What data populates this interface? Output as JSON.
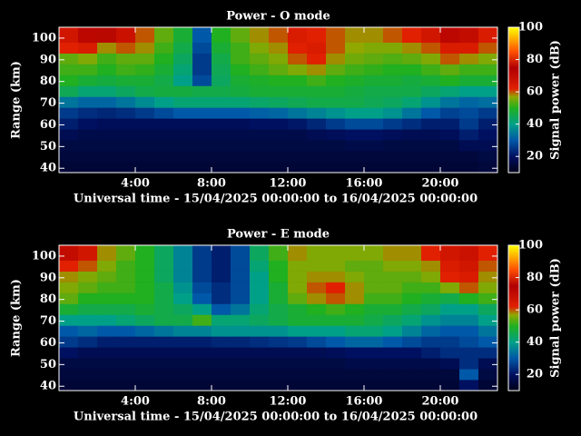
{
  "chart_data": [
    {
      "type": "heatmap",
      "title": "Power - O mode",
      "xlabel": "Universal time - 15/04/2025 00:00:00 to 16/04/2025 00:00:00",
      "ylabel": "Range (km)",
      "xlim": [
        0,
        23
      ],
      "ylim": [
        38,
        105
      ],
      "xticks": [
        {
          "value": 4,
          "label": "4:00"
        },
        {
          "value": 8,
          "label": "8:00"
        },
        {
          "value": 12,
          "label": "12:00"
        },
        {
          "value": 16,
          "label": "16:00"
        },
        {
          "value": 20,
          "label": "20:00"
        }
      ],
      "yticks": [
        40,
        50,
        60,
        70,
        80,
        90,
        100
      ],
      "x_bins": [
        0,
        1,
        2,
        3,
        4,
        5,
        6,
        7,
        8,
        9,
        10,
        11,
        12,
        13,
        14,
        15,
        16,
        17,
        18,
        19,
        20,
        21,
        22,
        23
      ],
      "y_bins": [
        38,
        43,
        48,
        53,
        58,
        63,
        68,
        73,
        78,
        83,
        88,
        93,
        98,
        105
      ],
      "values": [
        [
          14,
          14,
          14,
          14,
          14,
          14,
          14,
          14,
          14,
          14,
          14,
          14,
          14,
          14,
          14,
          14,
          14,
          14,
          14,
          14,
          14,
          14,
          15
        ],
        [
          15,
          15,
          15,
          15,
          15,
          15,
          15,
          15,
          15,
          15,
          15,
          15,
          15,
          15,
          15,
          15,
          15,
          15,
          15,
          15,
          15,
          15,
          16
        ],
        [
          16,
          16,
          16,
          16,
          16,
          16,
          16,
          16,
          16,
          16,
          16,
          16,
          16,
          16,
          16,
          17,
          17,
          16,
          16,
          16,
          16,
          18,
          18
        ],
        [
          18,
          17,
          17,
          17,
          17,
          17,
          17,
          17,
          17,
          17,
          17,
          17,
          17,
          18,
          19,
          20,
          20,
          19,
          18,
          18,
          19,
          22,
          20
        ],
        [
          22,
          20,
          19,
          19,
          19,
          19,
          19,
          19,
          19,
          19,
          20,
          20,
          21,
          23,
          26,
          28,
          28,
          26,
          24,
          22,
          22,
          26,
          22
        ],
        [
          26,
          24,
          23,
          24,
          26,
          28,
          30,
          30,
          30,
          30,
          31,
          32,
          34,
          36,
          38,
          40,
          40,
          38,
          34,
          30,
          27,
          28,
          26
        ],
        [
          34,
          32,
          32,
          34,
          37,
          40,
          42,
          42,
          42,
          42,
          43,
          44,
          45,
          46,
          46,
          46,
          45,
          44,
          42,
          38,
          34,
          32,
          33
        ],
        [
          45,
          42,
          42,
          44,
          46,
          47,
          47,
          46,
          46,
          47,
          48,
          48,
          48,
          48,
          48,
          47,
          46,
          46,
          46,
          44,
          42,
          40,
          40
        ],
        [
          50,
          48,
          47,
          48,
          48,
          46,
          40,
          28,
          44,
          48,
          49,
          50,
          50,
          52,
          50,
          49,
          48,
          48,
          47,
          48,
          50,
          48,
          48
        ],
        [
          52,
          52,
          50,
          52,
          51,
          48,
          42,
          26,
          45,
          50,
          52,
          54,
          56,
          58,
          54,
          52,
          51,
          50,
          50,
          52,
          54,
          52,
          52
        ],
        [
          54,
          56,
          52,
          54,
          54,
          50,
          44,
          26,
          46,
          52,
          54,
          56,
          60,
          62,
          58,
          55,
          54,
          53,
          54,
          56,
          60,
          58,
          56
        ],
        [
          62,
          64,
          58,
          60,
          58,
          52,
          46,
          28,
          48,
          52,
          56,
          58,
          62,
          64,
          60,
          57,
          56,
          56,
          58,
          60,
          64,
          64,
          60
        ],
        [
          66,
          72,
          76,
          68,
          60,
          54,
          48,
          30,
          50,
          54,
          58,
          60,
          64,
          62,
          60,
          58,
          58,
          60,
          62,
          66,
          72,
          70,
          64
        ]
      ],
      "colorbar": {
        "label": "Signal power (dB)",
        "lim": [
          10,
          100
        ],
        "ticks": [
          20,
          40,
          60,
          80,
          100
        ]
      },
      "colormap": [
        [
          10,
          "#000018"
        ],
        [
          20,
          "#001060"
        ],
        [
          30,
          "#0058a8"
        ],
        [
          40,
          "#00a088"
        ],
        [
          50,
          "#20b020"
        ],
        [
          57,
          "#90a800"
        ],
        [
          62,
          "#e02000"
        ],
        [
          75,
          "#b00000"
        ],
        [
          85,
          "#ff5000"
        ],
        [
          100,
          "#ffff00"
        ]
      ]
    },
    {
      "type": "heatmap",
      "title": "Power - E mode",
      "xlabel": "Universal time - 15/04/2025 00:00:00 to 16/04/2025 00:00:00",
      "ylabel": "Range (km)",
      "xlim": [
        0,
        23
      ],
      "ylim": [
        38,
        105
      ],
      "xticks": [
        {
          "value": 4,
          "label": "4:00"
        },
        {
          "value": 8,
          "label": "8:00"
        },
        {
          "value": 12,
          "label": "12:00"
        },
        {
          "value": 16,
          "label": "16:00"
        },
        {
          "value": 20,
          "label": "20:00"
        }
      ],
      "yticks": [
        40,
        50,
        60,
        70,
        80,
        90,
        100
      ],
      "x_bins": [
        0,
        1,
        2,
        3,
        4,
        5,
        6,
        7,
        8,
        9,
        10,
        11,
        12,
        13,
        14,
        15,
        16,
        17,
        18,
        19,
        20,
        21,
        22,
        23
      ],
      "y_bins": [
        38,
        43,
        48,
        53,
        58,
        63,
        68,
        73,
        78,
        83,
        88,
        93,
        98,
        105
      ],
      "values": [
        [
          14,
          14,
          14,
          14,
          14,
          14,
          14,
          14,
          14,
          14,
          14,
          14,
          14,
          14,
          14,
          14,
          14,
          14,
          14,
          14,
          14,
          20,
          14
        ],
        [
          15,
          15,
          15,
          15,
          15,
          15,
          15,
          15,
          15,
          15,
          15,
          15,
          15,
          15,
          15,
          15,
          15,
          15,
          15,
          15,
          15,
          30,
          16
        ],
        [
          16,
          16,
          16,
          16,
          16,
          16,
          16,
          16,
          16,
          16,
          16,
          16,
          16,
          16,
          16,
          17,
          17,
          17,
          17,
          17,
          18,
          24,
          18
        ],
        [
          20,
          18,
          18,
          18,
          18,
          18,
          18,
          18,
          18,
          18,
          18,
          18,
          18,
          18,
          19,
          20,
          20,
          20,
          20,
          22,
          24,
          24,
          24
        ],
        [
          26,
          24,
          22,
          22,
          22,
          22,
          22,
          22,
          23,
          23,
          24,
          25,
          26,
          28,
          30,
          32,
          32,
          30,
          28,
          26,
          26,
          28,
          30
        ],
        [
          30,
          32,
          30,
          30,
          32,
          34,
          36,
          36,
          38,
          38,
          38,
          38,
          40,
          40,
          40,
          42,
          42,
          40,
          36,
          32,
          30,
          30,
          34
        ],
        [
          40,
          40,
          40,
          42,
          44,
          46,
          46,
          52,
          42,
          42,
          44,
          46,
          48,
          48,
          48,
          48,
          46,
          44,
          42,
          38,
          36,
          36,
          40
        ],
        [
          48,
          46,
          46,
          46,
          48,
          46,
          44,
          40,
          30,
          34,
          42,
          46,
          48,
          50,
          52,
          50,
          48,
          48,
          46,
          44,
          40,
          40,
          44
        ],
        [
          54,
          50,
          50,
          50,
          50,
          46,
          40,
          30,
          24,
          28,
          40,
          48,
          54,
          58,
          60,
          58,
          52,
          52,
          50,
          48,
          46,
          50,
          52
        ],
        [
          56,
          54,
          52,
          52,
          50,
          46,
          38,
          28,
          24,
          28,
          40,
          48,
          56,
          60,
          62,
          58,
          54,
          54,
          52,
          52,
          56,
          60,
          56
        ],
        [
          58,
          56,
          54,
          52,
          50,
          44,
          36,
          26,
          22,
          28,
          40,
          50,
          56,
          58,
          58,
          56,
          54,
          54,
          54,
          56,
          62,
          64,
          58
        ],
        [
          62,
          60,
          56,
          52,
          50,
          44,
          36,
          26,
          22,
          28,
          42,
          50,
          56,
          56,
          56,
          54,
          54,
          56,
          56,
          58,
          64,
          66,
          60
        ],
        [
          70,
          66,
          58,
          54,
          50,
          44,
          36,
          26,
          22,
          28,
          44,
          52,
          58,
          56,
          56,
          56,
          56,
          58,
          58,
          62,
          66,
          68,
          62
        ]
      ],
      "colorbar": {
        "label": "Signal power (dB)",
        "lim": [
          10,
          100
        ],
        "ticks": [
          20,
          40,
          60,
          80,
          100
        ]
      },
      "colormap": [
        [
          10,
          "#000018"
        ],
        [
          20,
          "#001060"
        ],
        [
          30,
          "#0058a8"
        ],
        [
          40,
          "#00a088"
        ],
        [
          50,
          "#20b020"
        ],
        [
          57,
          "#90a800"
        ],
        [
          62,
          "#e02000"
        ],
        [
          75,
          "#b00000"
        ],
        [
          85,
          "#ff5000"
        ],
        [
          100,
          "#ffff00"
        ]
      ]
    }
  ]
}
